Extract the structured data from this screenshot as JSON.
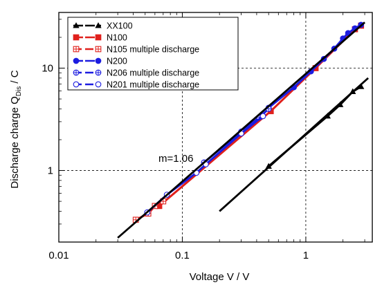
{
  "chart_data": {
    "type": "scatter",
    "xscale": "log",
    "yscale": "log",
    "xlim": [
      0.01,
      3.5
    ],
    "ylim": [
      0.2,
      35
    ],
    "xticks": [
      0.01,
      0.1,
      1
    ],
    "xtick_labels": [
      "0.01",
      "0.1",
      "1"
    ],
    "yticks": [
      1,
      10
    ],
    "ytick_labels": [
      "1",
      "10"
    ],
    "xlabel": "Voltage V  /  V",
    "ylabel_main": "Discharge charge Q",
    "ylabel_sub": "Dis",
    "ylabel_unit": "  /  C",
    "grid": "dashed at major decades",
    "legend_position": "top-left",
    "annotation": "m=1.06",
    "series": [
      {
        "name": "XX100",
        "color": "#000000",
        "marker": "triangle-filled",
        "dash": false,
        "x": [
          0.5,
          1.5,
          1.9,
          2.4,
          2.8
        ],
        "y": [
          1.1,
          3.4,
          4.4,
          5.9,
          6.6
        ]
      },
      {
        "name": "N100",
        "color": "#e0201c",
        "marker": "square-filled",
        "dash": false,
        "x": [
          0.065,
          0.52,
          1.2,
          2.5,
          2.8
        ],
        "y": [
          0.45,
          3.8,
          10,
          24,
          26
        ]
      },
      {
        "name": "N105 multiple discharge",
        "color": "#e0201c",
        "marker": "square-open-plus",
        "dash": true,
        "x": [
          0.042,
          0.053,
          0.06,
          0.07
        ],
        "y": [
          0.33,
          0.38,
          0.45,
          0.5
        ]
      },
      {
        "name": "N200",
        "color": "#1c1ce0",
        "marker": "circle-filled",
        "dash": false,
        "x": [
          0.5,
          0.8,
          1.1,
          1.4,
          1.7,
          2.0,
          2.2,
          2.5,
          2.8
        ],
        "y": [
          4.1,
          6.5,
          9.3,
          12.3,
          15.5,
          19.5,
          22,
          24.5,
          26.5
        ]
      },
      {
        "name": "N206 multiple discharge",
        "color": "#1c1ce0",
        "marker": "circle-open-plus",
        "dash": true,
        "x": [
          0.15,
          0.3,
          0.42,
          0.5
        ],
        "y": [
          1.2,
          2.4,
          3.3,
          4.0
        ]
      },
      {
        "name": "N201 multiple discharge",
        "color": "#1c1ce0",
        "marker": "circle-open",
        "dash": true,
        "x": [
          0.052,
          0.075,
          0.13,
          0.155,
          0.3,
          0.45
        ],
        "y": [
          0.39,
          0.58,
          0.95,
          1.15,
          2.3,
          3.4
        ]
      }
    ],
    "fits": [
      {
        "x": [
          0.03,
          3.0
        ],
        "y": [
          0.22,
          28
        ]
      },
      {
        "x": [
          0.2,
          3.2
        ],
        "y": [
          0.4,
          8.0
        ]
      }
    ]
  }
}
